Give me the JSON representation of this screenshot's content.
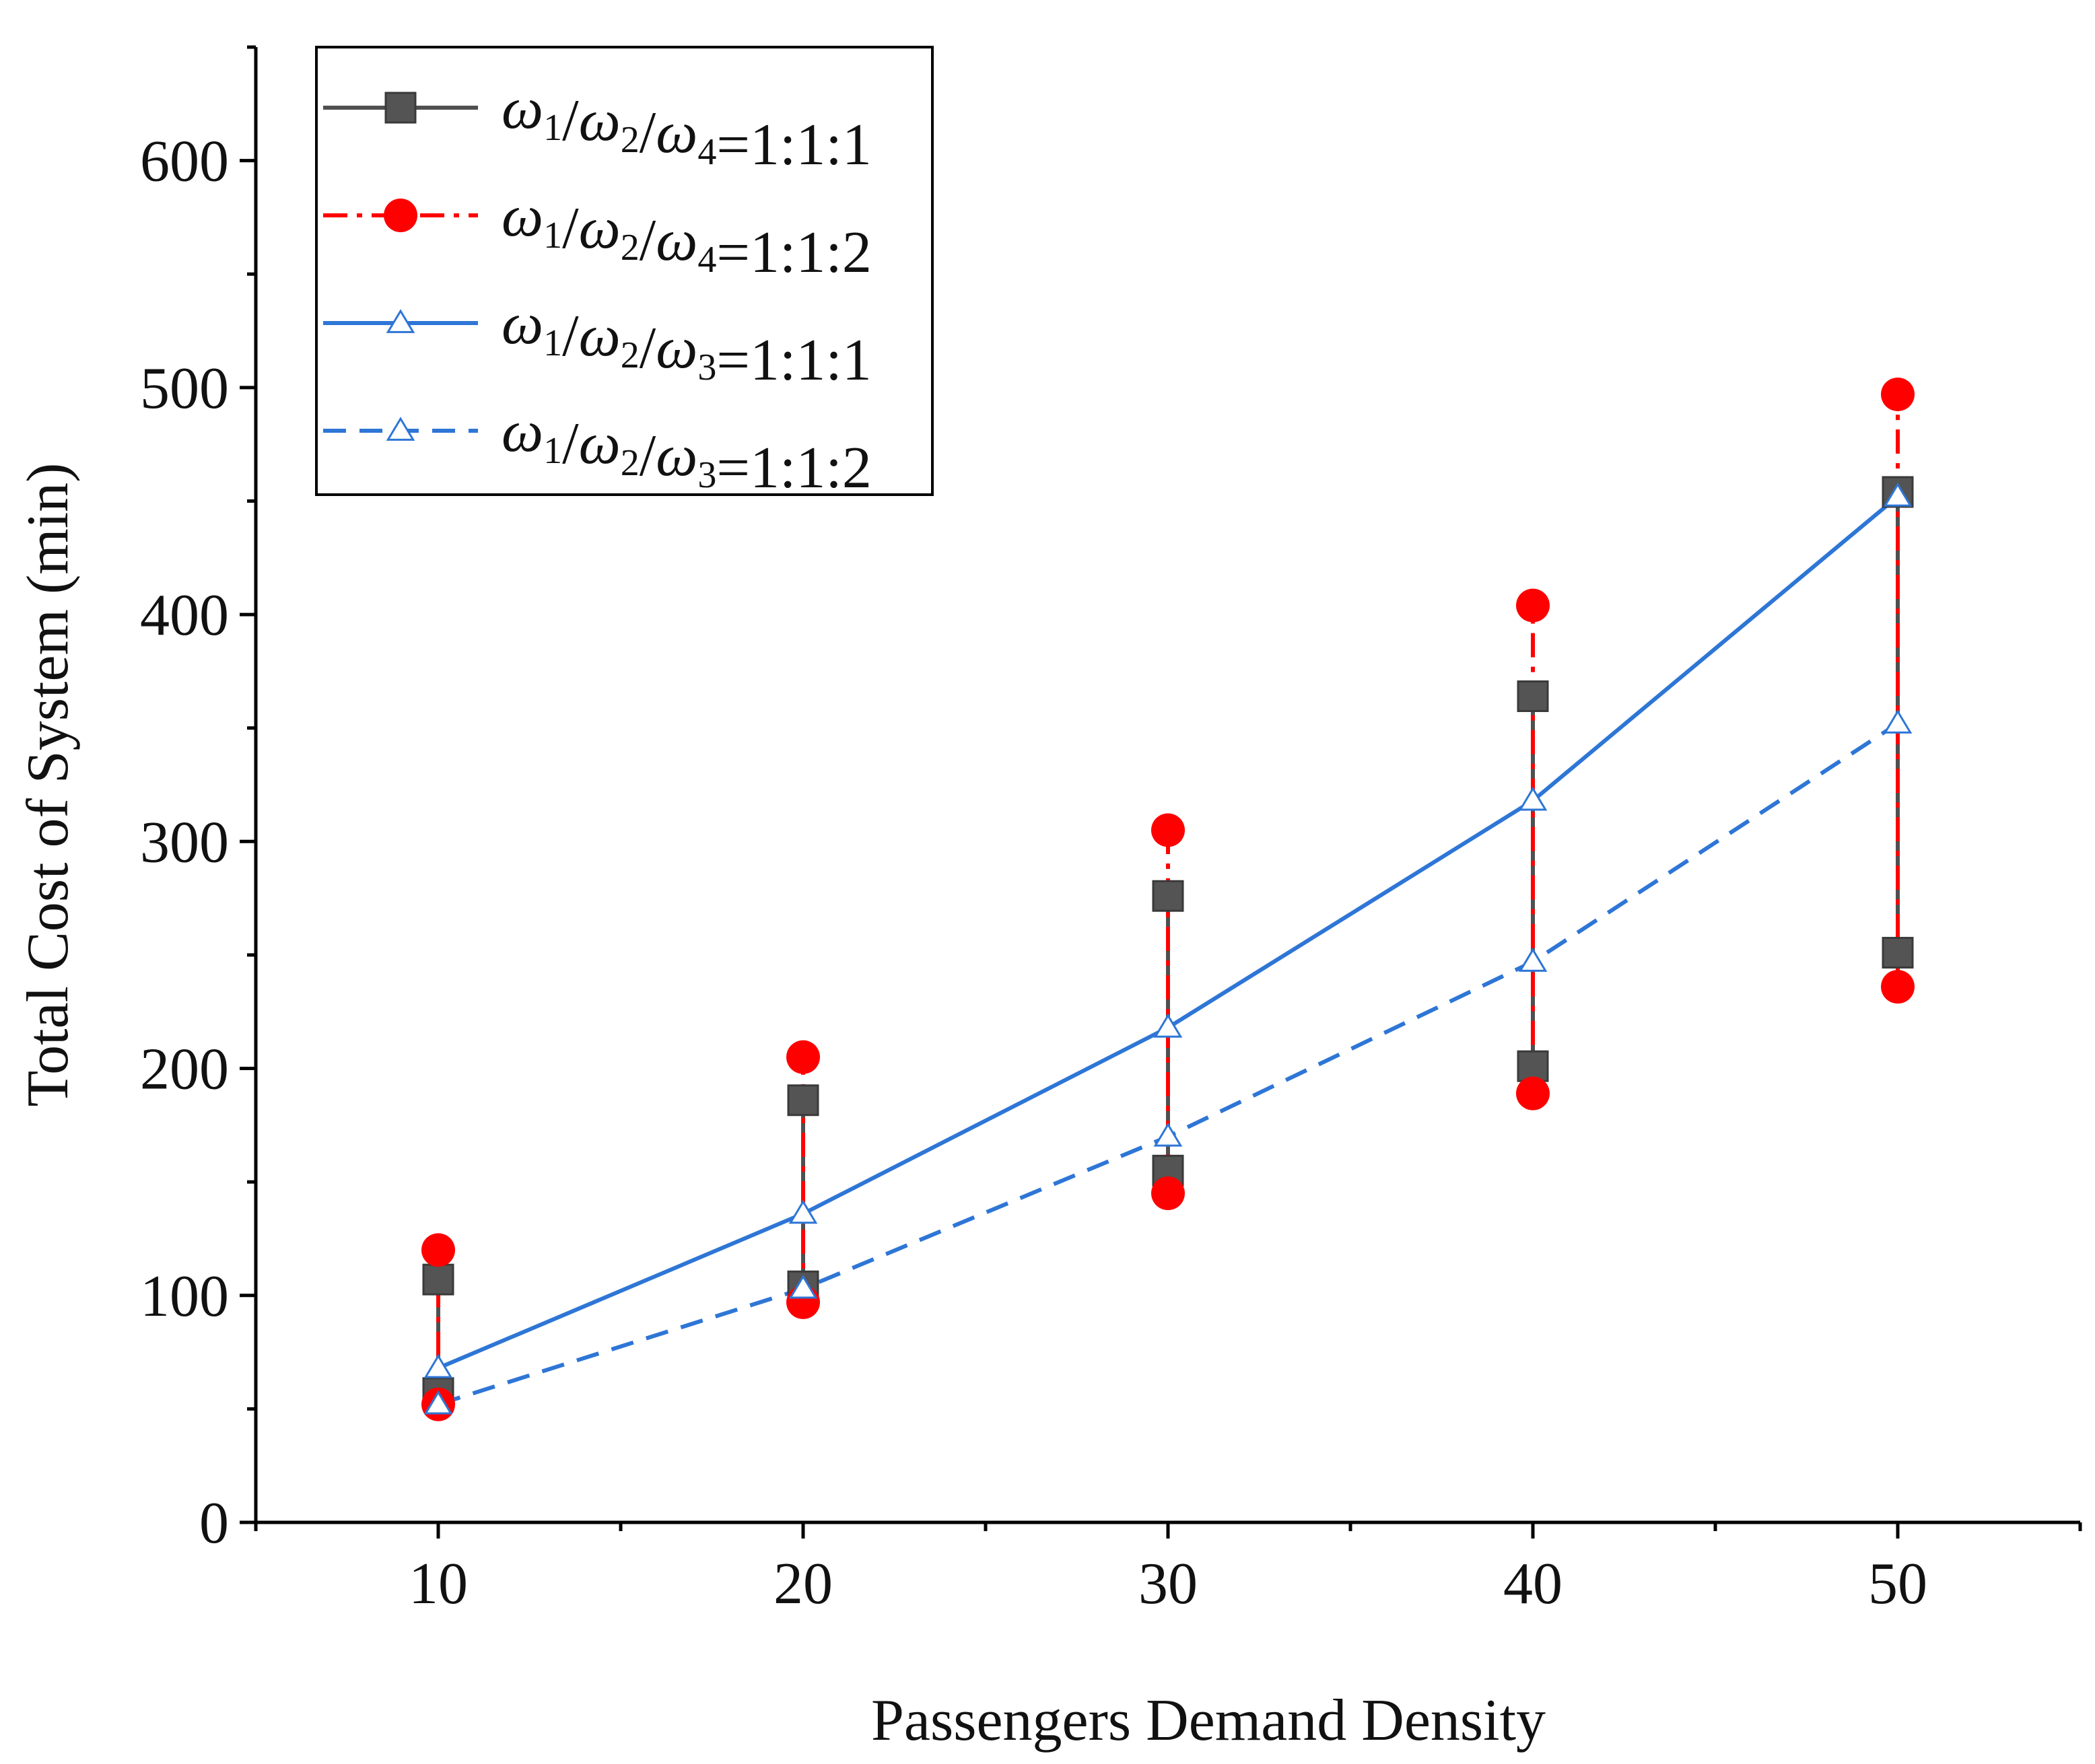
{
  "chart_data": {
    "type": "line",
    "title": "",
    "xlabel": "Passengers Demand Density",
    "ylabel": "Total Cost of System (min)",
    "xlim": [
      5,
      55
    ],
    "ylim": [
      0,
      650
    ],
    "x_ticks": [
      10,
      20,
      30,
      40,
      50
    ],
    "y_ticks": [
      0,
      100,
      200,
      300,
      400,
      500,
      600
    ],
    "grid": false,
    "legend_position": "top-left",
    "series": [
      {
        "name": "ω1/ω2/ω4=1:1:1",
        "style": "range",
        "color": "#505050",
        "marker": "square",
        "line": "solid",
        "x": [
          10,
          20,
          30,
          40,
          50
        ],
        "low": [
          57,
          104,
          155,
          201,
          251
        ],
        "high": [
          107,
          186,
          276,
          364,
          454
        ]
      },
      {
        "name": "ω1/ω2/ω4=1:1:2",
        "style": "range",
        "color": "#ff0000",
        "marker": "circle",
        "line": "dashdot",
        "x": [
          10,
          20,
          30,
          40,
          50
        ],
        "low": [
          52,
          97,
          145,
          189,
          236
        ],
        "high": [
          120,
          205,
          305,
          404,
          497
        ]
      },
      {
        "name": "ω1/ω2/ω3=1:1:1",
        "style": "line",
        "color": "#2e76d6",
        "marker": "triangle-open",
        "line": "solid",
        "x": [
          10,
          20,
          30,
          40,
          50
        ],
        "values": [
          68,
          136,
          218,
          318,
          452
        ]
      },
      {
        "name": "ω1/ω2/ω3=1:1:2",
        "style": "line",
        "color": "#2e76d6",
        "marker": "triangle-open",
        "line": "dashed",
        "x": [
          10,
          20,
          30,
          40,
          50
        ],
        "values": [
          52,
          103,
          170,
          247,
          352
        ]
      }
    ]
  }
}
